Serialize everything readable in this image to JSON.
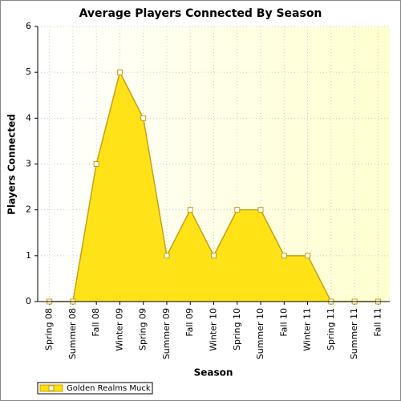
{
  "chart_data": {
    "type": "area",
    "title": "Average Players Connected By Season",
    "x_label": "Season",
    "y_label": "Players Connected",
    "categories": [
      "Spring 08",
      "Summer 08",
      "Fall 08",
      "Winter 09",
      "Spring 09",
      "Summer 09",
      "Fall 09",
      "Winter 10",
      "Spring 10",
      "Summer 10",
      "Fall 10",
      "Winter 11",
      "Spring 11",
      "Summer 11",
      "Fall 11"
    ],
    "series": [
      {
        "name": "Golden Realms Muck",
        "color": "#ffe000",
        "line_color": "#c8a010",
        "values": [
          0,
          0,
          3,
          5,
          4,
          1,
          2,
          1,
          2,
          2,
          1,
          1,
          0,
          0,
          0
        ]
      }
    ],
    "ylim": [
      0,
      6
    ],
    "yticks": [
      0,
      1,
      2,
      3,
      4,
      5,
      6
    ],
    "grid": true,
    "legend": "bottom-left"
  }
}
